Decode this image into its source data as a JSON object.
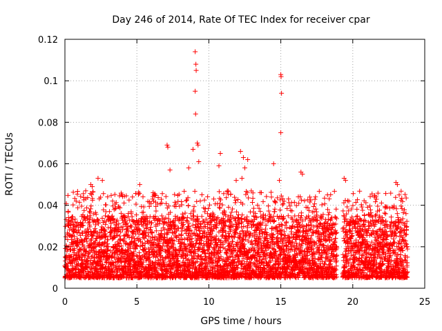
{
  "chart_data": {
    "type": "scatter",
    "title": "Day 246 of 2014, Rate Of TEC Index for receiver cpar",
    "xlabel": "GPS time / hours",
    "ylabel": "ROTI / TECUs",
    "xlim": [
      0,
      25
    ],
    "ylim": [
      0,
      0.12
    ],
    "xticks": [
      0,
      5,
      10,
      15,
      20,
      25
    ],
    "yticks": [
      0,
      0.02,
      0.04,
      0.06,
      0.08,
      0.1,
      0.12
    ],
    "xtick_labels": [
      "0",
      "5",
      "10",
      "15",
      "20",
      "25"
    ],
    "ytick_labels": [
      "0",
      "0.02",
      "0.04",
      "0.06",
      "0.08",
      "0.1",
      "0.12"
    ],
    "grid": true,
    "marker": "+",
    "color": "#ff0000",
    "series": [
      {
        "name": "ROTI",
        "points": [
          [
            9.05,
            0.114
          ],
          [
            9.1,
            0.108
          ],
          [
            9.12,
            0.105
          ],
          [
            9.05,
            0.095
          ],
          [
            9.08,
            0.084
          ],
          [
            15.0,
            0.103
          ],
          [
            15.02,
            0.102
          ],
          [
            15.05,
            0.094
          ],
          [
            15.0,
            0.075
          ],
          [
            7.1,
            0.069
          ],
          [
            7.15,
            0.068
          ],
          [
            9.2,
            0.07
          ],
          [
            9.25,
            0.069
          ],
          [
            8.9,
            0.067
          ],
          [
            12.2,
            0.066
          ],
          [
            10.8,
            0.065
          ],
          [
            12.4,
            0.063
          ],
          [
            12.7,
            0.062
          ],
          [
            9.3,
            0.061
          ],
          [
            14.5,
            0.06
          ],
          [
            7.3,
            0.057
          ],
          [
            8.6,
            0.058
          ],
          [
            10.7,
            0.059
          ],
          [
            12.5,
            0.058
          ],
          [
            16.4,
            0.056
          ],
          [
            16.5,
            0.055
          ],
          [
            19.4,
            0.053
          ],
          [
            19.5,
            0.052
          ],
          [
            2.3,
            0.053
          ],
          [
            2.6,
            0.052
          ],
          [
            23.0,
            0.051
          ],
          [
            23.1,
            0.05
          ],
          [
            1.8,
            0.05
          ],
          [
            1.9,
            0.049
          ],
          [
            5.2,
            0.05
          ],
          [
            11.9,
            0.052
          ],
          [
            12.3,
            0.053
          ],
          [
            14.9,
            0.052
          ]
        ]
      }
    ],
    "summary": {
      "gap_hours": [
        18.9,
        19.3
      ],
      "typical_range": [
        0.005,
        0.035
      ],
      "coverage_hours": [
        0,
        23.8
      ]
    }
  }
}
